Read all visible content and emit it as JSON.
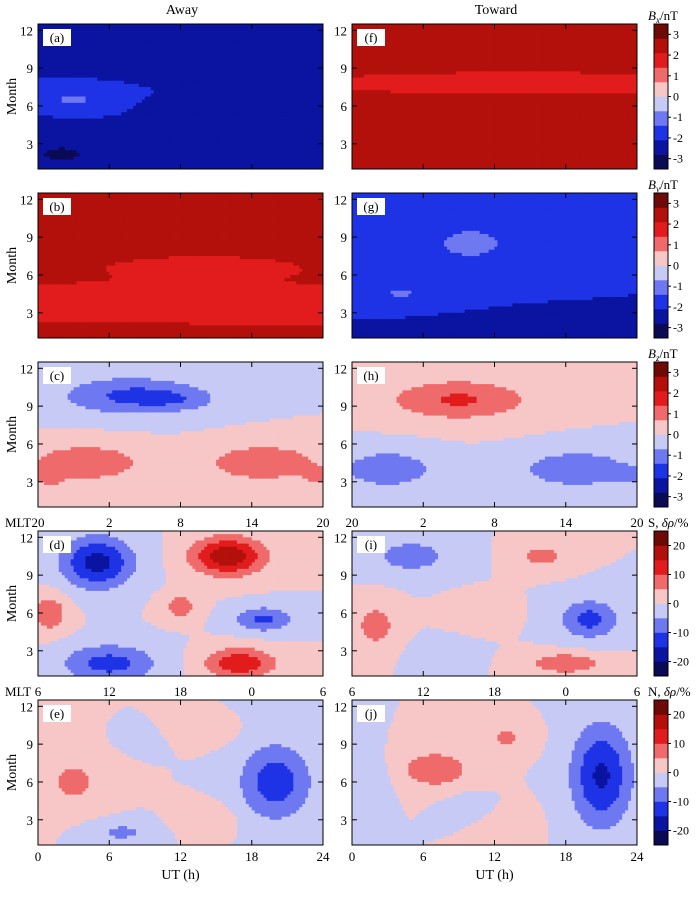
{
  "chart_data": {
    "type": "heatmap",
    "columns": [
      "Away",
      "Toward"
    ],
    "xlabel": "UT (h)",
    "ylabel": "Month",
    "x_ticks": [
      "0",
      "6",
      "12",
      "18",
      "24"
    ],
    "y_ticks": [
      "3",
      "6",
      "9",
      "12"
    ],
    "xlim": [
      0,
      24
    ],
    "ylim": [
      1,
      12.5
    ],
    "mlt_prefix": "MLT",
    "mlt_ticks_south": [
      "20",
      "2",
      "8",
      "14",
      "20"
    ],
    "mlt_ticks_north": [
      "6",
      "12",
      "18",
      "0",
      "6"
    ],
    "rows": [
      {
        "colorbar": {
          "label_var": "B",
          "label_sub": "x",
          "label_unit": "/nT",
          "ticks": [
            "3",
            "2",
            "1",
            "0",
            "-1",
            "-2",
            "-3"
          ],
          "range": [
            -3.5,
            3.5
          ],
          "step": 1
        },
        "panels": [
          {
            "label": "(a)",
            "base": -2.1,
            "features": [
              {
                "ut": 6,
                "month": 11.5,
                "dx": 5,
                "dy": 1.2,
                "amp": -0.6
              },
              {
                "ut": 2,
                "month": 2.2,
                "dx": 4,
                "dy": 1.2,
                "amp": -0.8
              },
              {
                "ut": 20,
                "month": 1.5,
                "dx": 5,
                "dy": 1,
                "amp": -0.6
              },
              {
                "ut": 3,
                "month": 6.5,
                "dx": 2,
                "dy": 0.6,
                "amp": 0.9
              },
              {
                "ut": 15,
                "month": 5.3,
                "dx": 3,
                "dy": 0.6,
                "amp": -0.5
              }
            ]
          },
          {
            "label": "(f)",
            "base": 2.2,
            "features": [
              {
                "ut": 14,
                "month": 7.8,
                "dx": 12,
                "dy": 0.6,
                "amp": -0.8
              },
              {
                "ut": 6,
                "month": 1.8,
                "dx": 5,
                "dy": 1,
                "amp": 0.6
              },
              {
                "ut": 20,
                "month": 1.5,
                "dx": 5,
                "dy": 0.8,
                "amp": 0.5
              }
            ]
          }
        ]
      },
      {
        "colorbar": {
          "label_var": "B",
          "label_sub": "y",
          "label_unit": "/nT",
          "ticks": [
            "3",
            "2",
            "1",
            "0",
            "-1",
            "-2",
            "-3"
          ],
          "range": [
            -3.5,
            3.5
          ],
          "step": 1
        },
        "panels": [
          {
            "label": "(b)",
            "base": 2.2,
            "features": [
              {
                "ut": 12,
                "month": 3.5,
                "dx": 14,
                "dy": 1.5,
                "amp": -0.7
              },
              {
                "ut": 14,
                "month": 6.5,
                "dx": 6,
                "dy": 0.7,
                "amp": -0.6
              },
              {
                "ut": 6,
                "month": 11.5,
                "dx": 6,
                "dy": 0.7,
                "amp": 0.5
              },
              {
                "ut": 10,
                "month": 1.5,
                "dx": 8,
                "dy": 0.7,
                "amp": 0.5
              }
            ]
          },
          {
            "label": "(g)",
            "base": -2.1,
            "features": [
              {
                "ut": 10,
                "month": 8.5,
                "dx": 6,
                "dy": 2.5,
                "amp": 0.8
              },
              {
                "ut": 4,
                "month": 4.5,
                "dx": 5,
                "dy": 1.5,
                "amp": 0.7
              },
              {
                "ut": 14,
                "month": 1.8,
                "dx": 10,
                "dy": 1,
                "amp": -0.7
              }
            ]
          }
        ]
      },
      {
        "colorbar": {
          "label_var": "B",
          "label_sub": "z",
          "label_unit": "/nT",
          "ticks": [
            "3",
            "2",
            "1",
            "0",
            "-1",
            "-2",
            "-3"
          ],
          "range": [
            -3.5,
            3.5
          ],
          "step": 1
        },
        "panels": [
          {
            "label": "(c)",
            "base": 0.0,
            "features": [
              {
                "ut": 8,
                "month": 9.8,
                "dx": 6,
                "dy": 1.5,
                "amp": -1.6
              },
              {
                "ut": 12,
                "month": 9.5,
                "dx": 3,
                "dy": 0.8,
                "amp": -0.5
              },
              {
                "ut": 4,
                "month": 4.5,
                "dx": 5,
                "dy": 1.5,
                "amp": 1.3
              },
              {
                "ut": 19,
                "month": 4.5,
                "dx": 5,
                "dy": 1.5,
                "amp": 1.3
              },
              {
                "ut": 1,
                "month": 3.2,
                "dx": 1,
                "dy": 0.6,
                "amp": 0.9
              },
              {
                "ut": 23.5,
                "month": 3.5,
                "dx": 1,
                "dy": 0.6,
                "amp": 0.9
              },
              {
                "ut": 0.5,
                "month": 12,
                "dx": 4,
                "dy": 0.8,
                "amp": -0.6
              }
            ]
          },
          {
            "label": "(h)",
            "base": 0.0,
            "features": [
              {
                "ut": 9,
                "month": 9.5,
                "dx": 6,
                "dy": 1.6,
                "amp": 1.5
              },
              {
                "ut": 3,
                "month": 4,
                "dx": 4,
                "dy": 1.5,
                "amp": -1.3
              },
              {
                "ut": 19,
                "month": 4,
                "dx": 5,
                "dy": 1.5,
                "amp": -1.3
              },
              {
                "ut": 23.5,
                "month": 3.5,
                "dx": 1,
                "dy": 0.6,
                "amp": -0.8
              }
            ]
          }
        ]
      },
      {
        "colorbar": {
          "label_prefix": "S, ",
          "label_var": "δρ",
          "label_sub": "",
          "label_unit": "/%",
          "ticks": [
            "20",
            "10",
            "0",
            "-10",
            "-20"
          ],
          "range": [
            -25,
            25
          ],
          "step": 5
        },
        "panels": [
          {
            "label": "(d)",
            "base": 0.0,
            "features": [
              {
                "ut": 5,
                "month": 10,
                "dx": 3,
                "dy": 2,
                "amp": -17
              },
              {
                "ut": 16,
                "month": 10.5,
                "dx": 3,
                "dy": 1.5,
                "amp": 19
              },
              {
                "ut": 17,
                "month": 2,
                "dx": 3,
                "dy": 1.2,
                "amp": 14
              },
              {
                "ut": 6,
                "month": 2,
                "dx": 4,
                "dy": 1.5,
                "amp": -12
              },
              {
                "ut": 19,
                "month": 5.5,
                "dx": 2.5,
                "dy": 1,
                "amp": -11
              },
              {
                "ut": 1,
                "month": 6,
                "dx": 1.5,
                "dy": 1.5,
                "amp": 9
              },
              {
                "ut": 12,
                "month": 6.5,
                "dx": 1.5,
                "dy": 1,
                "amp": 8
              }
            ]
          },
          {
            "label": "(i)",
            "base": 0.0,
            "features": [
              {
                "ut": 5,
                "month": 10.5,
                "dx": 3,
                "dy": 1.2,
                "amp": -9
              },
              {
                "ut": 16,
                "month": 10.5,
                "dx": 2,
                "dy": 1,
                "amp": 7
              },
              {
                "ut": 2,
                "month": 5,
                "dx": 1.5,
                "dy": 1.5,
                "amp": 9
              },
              {
                "ut": 20,
                "month": 5.5,
                "dx": 2.5,
                "dy": 1.5,
                "amp": -12
              },
              {
                "ut": 18,
                "month": 2,
                "dx": 3,
                "dy": 0.8,
                "amp": 10
              },
              {
                "ut": 11,
                "month": 6,
                "dx": 2,
                "dy": 1,
                "amp": 5
              },
              {
                "ut": 8,
                "month": 2.5,
                "dx": 2,
                "dy": 1,
                "amp": -5
              }
            ]
          }
        ]
      },
      {
        "colorbar": {
          "label_prefix": "N, ",
          "label_var": "δρ",
          "label_sub": "",
          "label_unit": "/%",
          "ticks": [
            "20",
            "10",
            "0",
            "-10",
            "-20"
          ],
          "range": [
            -25,
            25
          ],
          "step": 5
        },
        "panels": [
          {
            "label": "(e)",
            "base": 0.0,
            "features": [
              {
                "ut": 20,
                "month": 6,
                "dx": 3,
                "dy": 3,
                "amp": -13
              },
              {
                "ut": 3,
                "month": 6,
                "dx": 3,
                "dy": 2.5,
                "amp": 6
              },
              {
                "ut": 13,
                "month": 10,
                "dx": 3,
                "dy": 1,
                "amp": 5
              },
              {
                "ut": 9,
                "month": 9.5,
                "dx": 2,
                "dy": 1,
                "amp": -4
              },
              {
                "ut": 14,
                "month": 3,
                "dx": 2.5,
                "dy": 1.2,
                "amp": 5
              },
              {
                "ut": 7,
                "month": 2,
                "dx": 3,
                "dy": 1,
                "amp": -6
              }
            ]
          },
          {
            "label": "(j)",
            "base": 0.0,
            "features": [
              {
                "ut": 21,
                "month": 6.5,
                "dx": 2.5,
                "dy": 4,
                "amp": -16
              },
              {
                "ut": 7,
                "month": 7,
                "dx": 3,
                "dy": 1.5,
                "amp": 9
              },
              {
                "ut": 13,
                "month": 9.5,
                "dx": 2,
                "dy": 1.2,
                "amp": 6
              },
              {
                "ut": 13,
                "month": 2.5,
                "dx": 2,
                "dy": 1.5,
                "amp": 5
              },
              {
                "ut": 1.5,
                "month": 6,
                "dx": 1.5,
                "dy": 2,
                "amp": -5
              },
              {
                "ut": 10,
                "month": 4,
                "dx": 2,
                "dy": 1,
                "amp": -4
              }
            ]
          }
        ]
      }
    ]
  }
}
